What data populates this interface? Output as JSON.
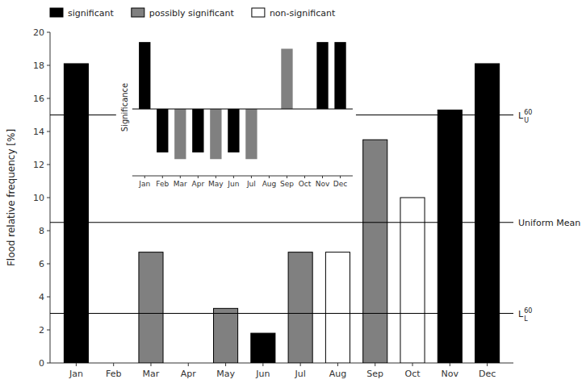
{
  "chart_data": [
    {
      "type": "bar",
      "categories": [
        "Jan",
        "Feb",
        "Mar",
        "Apr",
        "May",
        "Jun",
        "Jul",
        "Aug",
        "Sep",
        "Oct",
        "Nov",
        "Dec"
      ],
      "series": [
        {
          "name": "significant",
          "color": "black",
          "values": [
            18.1,
            null,
            null,
            null,
            null,
            1.8,
            null,
            null,
            null,
            null,
            15.3,
            18.1
          ]
        },
        {
          "name": "possibly significant",
          "color": "#808080",
          "values": [
            null,
            null,
            6.7,
            null,
            3.3,
            null,
            6.7,
            null,
            13.5,
            null,
            null,
            null
          ]
        },
        {
          "name": "non-significant",
          "color": "white",
          "values": [
            null,
            null,
            null,
            null,
            null,
            null,
            null,
            6.7,
            null,
            10.0,
            null,
            null
          ]
        }
      ],
      "ylabel": "Flood relative frequency [%]",
      "ylim": [
        0,
        20
      ],
      "yticks": [
        0,
        2,
        4,
        6,
        8,
        10,
        12,
        14,
        16,
        18,
        20
      ],
      "legend": "top",
      "annotations": [
        {
          "y": 15.0,
          "text": "L",
          "superscript": "60",
          "subscript": "U"
        },
        {
          "y": 8.5,
          "text": "Uniform Mean"
        },
        {
          "y": 3.0,
          "text": "L",
          "superscript": "60",
          "subscript": "L"
        }
      ]
    },
    {
      "type": "bar",
      "categories": [
        "Jan",
        "Feb",
        "Mar",
        "Apr",
        "May",
        "Jun",
        "Jul",
        "Aug",
        "Sep",
        "Oct",
        "Nov",
        "Dec"
      ],
      "values": [
        20,
        -13,
        -15,
        -13,
        -15,
        -13,
        -15,
        0,
        18,
        0,
        20,
        20
      ],
      "colors": [
        "black",
        "black",
        "#808080",
        "black",
        "#808080",
        "black",
        "#808080",
        "none",
        "#808080",
        "none",
        "black",
        "black"
      ],
      "ylabel": "Significance",
      "ylim": [
        -20,
        21
      ],
      "tick_labels": "x"
    }
  ]
}
